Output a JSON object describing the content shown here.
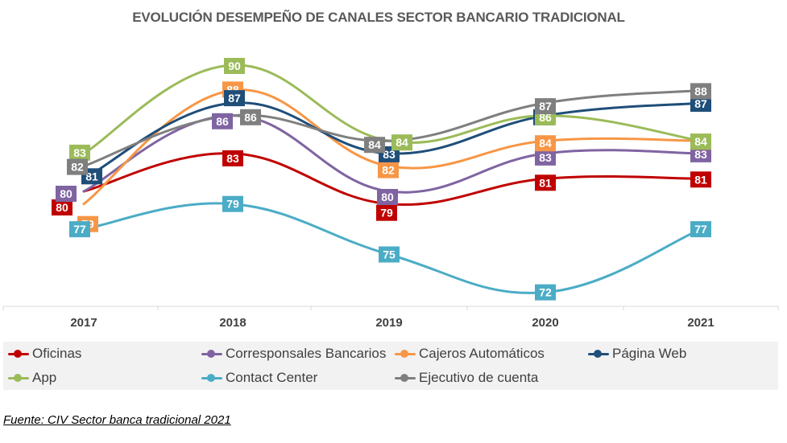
{
  "chart_data": {
    "type": "line",
    "title": "EVOLUCIÓN DESEMPEÑO DE CANALES SECTOR BANCARIO TRADICIONAL",
    "categories": [
      "2017",
      "2018",
      "2019",
      "2020",
      "2021"
    ],
    "ylim": [
      70,
      92
    ],
    "xlabel": "",
    "ylabel": "",
    "grid": false,
    "legend_position": "bottom",
    "series": [
      {
        "name": "Oficinas",
        "color": "#c00000",
        "values": [
          80,
          83,
          79,
          81,
          81
        ]
      },
      {
        "name": "Corresponsales Bancarios",
        "color": "#8064a2",
        "values": [
          80,
          86,
          80,
          83,
          83
        ]
      },
      {
        "name": "Cajeros Automáticos",
        "color": "#f79646",
        "values": [
          79,
          88,
          82,
          84,
          84
        ]
      },
      {
        "name": "Página Web",
        "color": "#1f4e79",
        "values": [
          81,
          87,
          83,
          86,
          87
        ]
      },
      {
        "name": "App",
        "color": "#9bbb59",
        "values": [
          83,
          90,
          84,
          86,
          84
        ]
      },
      {
        "name": "Contact Center",
        "color": "#4bacc6",
        "values": [
          77,
          79,
          75,
          72,
          77
        ]
      },
      {
        "name": "Ejecutivo de cuenta",
        "color": "#7f7f7f",
        "values": [
          82,
          86,
          84,
          87,
          88
        ]
      }
    ]
  },
  "source": "Fuente: CIV Sector banca tradicional 2021"
}
